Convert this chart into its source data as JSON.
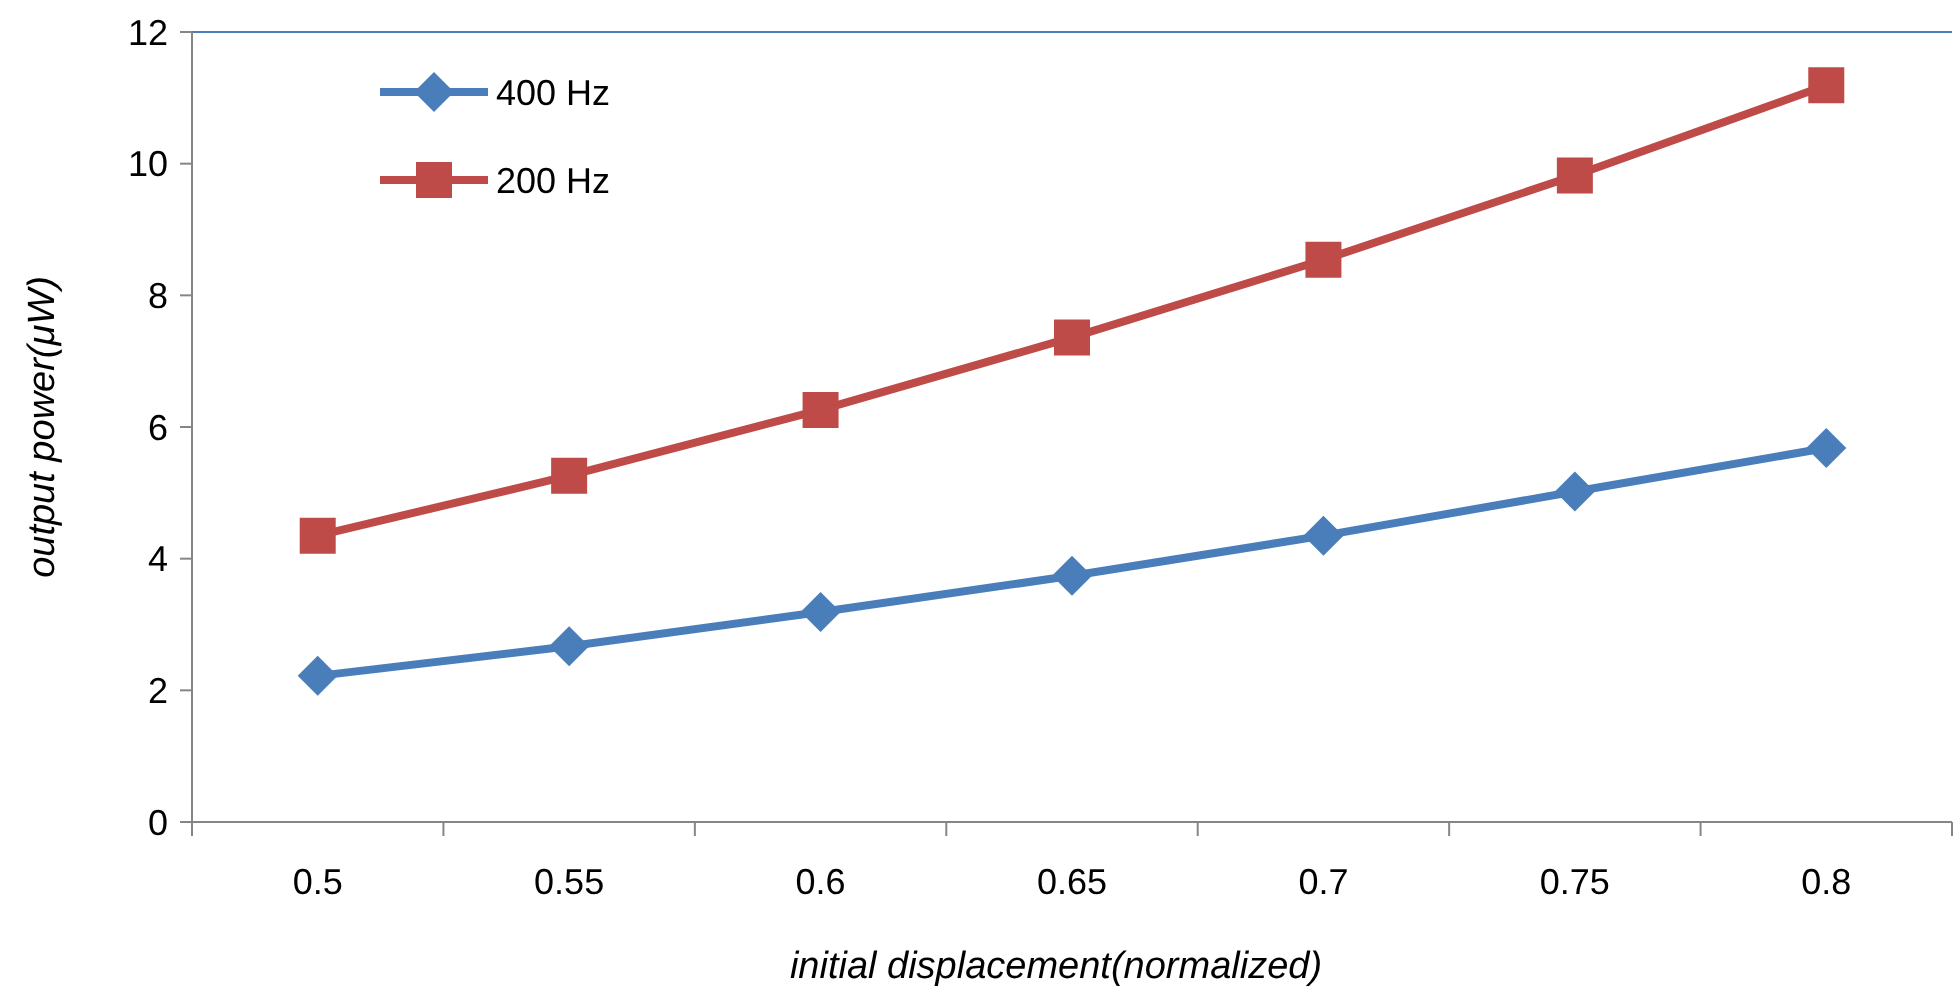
{
  "chart_data": {
    "type": "line",
    "xlabel": "initial displacement(normalized)",
    "ylabel": "output power(μW)",
    "categories": [
      "0.5",
      "0.55",
      "0.6",
      "0.65",
      "0.7",
      "0.75",
      "0.8"
    ],
    "series": [
      {
        "name": "400 Hz",
        "color": "#4a7ebb",
        "marker": "diamond",
        "values": [
          2.22,
          2.67,
          3.19,
          3.74,
          4.35,
          5.02,
          5.68
        ]
      },
      {
        "name": "200 Hz",
        "color": "#be4b48",
        "marker": "square",
        "values": [
          4.35,
          5.26,
          6.26,
          7.36,
          8.54,
          9.82,
          11.19
        ]
      }
    ],
    "ylim": [
      0,
      12
    ],
    "yticks": [
      0,
      2,
      4,
      6,
      8,
      10,
      12
    ],
    "grid": false,
    "legend": "top left",
    "line_style": "solid"
  }
}
